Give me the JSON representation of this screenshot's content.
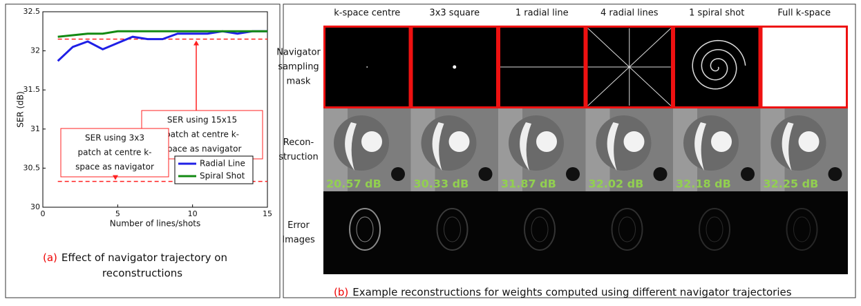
{
  "chart_data": {
    "type": "line",
    "xlabel": "Number of lines/shots",
    "ylabel": "SER (dB)",
    "xlim": [
      0,
      15
    ],
    "xticks": [
      0,
      5,
      10,
      15
    ],
    "ylim": [
      30,
      32.5
    ],
    "yticks": [
      30,
      30.5,
      31,
      31.5,
      32,
      32.5
    ],
    "series": [
      {
        "name": "Radial Line",
        "color": "#1f1fe6",
        "x": [
          1,
          2,
          3,
          4,
          5,
          6,
          7,
          8,
          9,
          10,
          11,
          12,
          13,
          14,
          15
        ],
        "values": [
          31.87,
          32.05,
          32.12,
          32.02,
          32.1,
          32.18,
          32.15,
          32.15,
          32.22,
          32.22,
          32.22,
          32.25,
          32.22,
          32.25,
          32.25
        ]
      },
      {
        "name": "Spiral Shot",
        "color": "#138a13",
        "x": [
          1,
          2,
          3,
          4,
          5,
          6,
          7,
          8,
          9,
          10,
          11,
          12,
          13,
          14,
          15
        ],
        "values": [
          32.18,
          32.2,
          32.22,
          32.22,
          32.25,
          32.25,
          32.25,
          32.25,
          32.25,
          32.25,
          32.25,
          32.25,
          32.25,
          32.25,
          32.25
        ]
      }
    ],
    "hlines": [
      {
        "value": 32.15,
        "color": "#ff2020",
        "text": [
          "SER using 15x15",
          "patch at  centre k-",
          "space as navigator"
        ]
      },
      {
        "value": 30.33,
        "color": "#ff2020",
        "text": [
          "SER using 3x3",
          "patch at  centre k-",
          "space as navigator"
        ]
      }
    ]
  },
  "caption_a": {
    "label": "(a)",
    "lines": [
      "Effect of navigator trajectory on",
      "reconstructions"
    ]
  },
  "panel_b": {
    "columns": [
      "k-space centre",
      "3x3 square",
      "1 radial line",
      "4 radial lines",
      "1 spiral shot",
      "Full k-space"
    ],
    "rows": [
      [
        "Navigator",
        "sampling",
        "mask"
      ],
      [
        "Recon-",
        "struction"
      ],
      [
        "Error",
        "Images"
      ]
    ],
    "ser_labels": [
      "20.57 dB",
      "30.33 dB",
      "31.87 dB",
      "32.02 dB",
      "32.18 dB",
      "32.25 dB"
    ],
    "caption": {
      "label": "(b)",
      "text": "Example reconstructions for weights computed using different navigator trajectories"
    }
  }
}
